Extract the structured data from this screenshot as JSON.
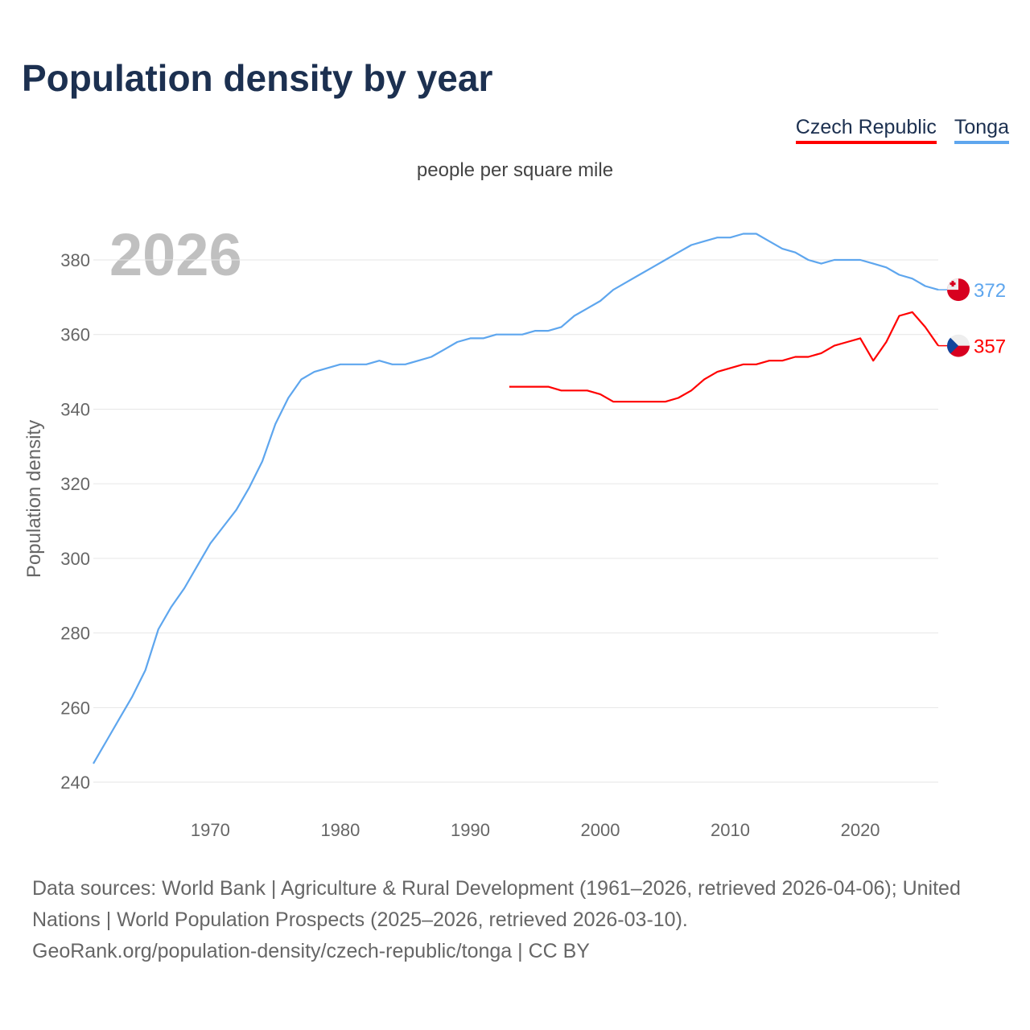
{
  "chart_data": {
    "type": "line",
    "title": "Population density by year",
    "subtitle": "people per square mile",
    "ylabel": "Population density",
    "xlabel": "",
    "watermark_year": "2026",
    "xlim": [
      1961,
      2026
    ],
    "ylim": [
      236,
      394
    ],
    "x_ticks": [
      1970,
      1980,
      1990,
      2000,
      2010,
      2020
    ],
    "y_ticks": [
      240,
      260,
      280,
      300,
      320,
      340,
      360,
      380
    ],
    "grid": true,
    "legend_position": "top-right",
    "series": [
      {
        "name": "Czech Republic",
        "color": "#ff0000",
        "end_label": "357",
        "start_year": 1993,
        "values": [
          346,
          346,
          346,
          346,
          345,
          345,
          345,
          344,
          342,
          342,
          342,
          342,
          342,
          343,
          345,
          348,
          350,
          351,
          352,
          352,
          353,
          353,
          354,
          354,
          355,
          357,
          358,
          359,
          353,
          358,
          365,
          366,
          362,
          357
        ]
      },
      {
        "name": "Tonga",
        "color": "#5ea6ee",
        "end_label": "372",
        "start_year": 1961,
        "values": [
          245,
          251,
          257,
          263,
          270,
          281,
          287,
          292,
          298,
          304,
          308.5,
          313,
          319,
          326,
          336,
          343,
          348,
          350,
          351,
          352,
          352,
          352,
          353,
          352,
          352,
          353,
          354,
          356,
          358,
          359,
          359,
          360,
          360,
          360,
          361,
          361,
          362,
          365,
          367,
          369,
          372,
          374,
          376,
          378,
          380,
          382,
          384,
          385,
          386,
          386,
          387,
          387,
          385,
          383,
          382,
          380,
          379,
          380,
          380,
          380,
          379,
          378,
          376,
          375,
          373,
          372
        ]
      }
    ]
  },
  "footer": {
    "line1": "Data sources: World Bank | Agriculture & Rural Development (1961–2026, retrieved 2026-04-06); United Nations | World Population Prospects (2025–2026, retrieved 2026-03-10).",
    "line2": "GeoRank.org/population-density/czech-republic/tonga | CC BY"
  }
}
